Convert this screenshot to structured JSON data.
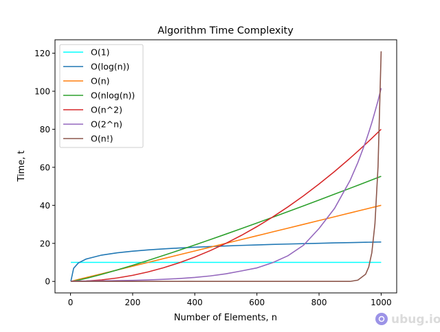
{
  "chart_data": {
    "type": "line",
    "title": "Algorithm Time Complexity",
    "xlabel": "Number of Elements, n",
    "ylabel": "Time, t",
    "xlim": [
      -50,
      1050
    ],
    "ylim": [
      -6.05,
      127.05
    ],
    "xticks": [
      0,
      200,
      400,
      600,
      800,
      1000
    ],
    "yticks": [
      0,
      20,
      40,
      60,
      80,
      100,
      120
    ],
    "grid": false,
    "legend_placement": "top-left",
    "x": [
      1,
      10,
      25,
      50,
      100,
      150,
      200,
      250,
      300,
      350,
      400,
      450,
      500,
      550,
      600,
      650,
      700,
      750,
      800,
      850,
      900,
      925,
      950,
      960,
      970,
      980,
      990,
      1000
    ],
    "series": [
      {
        "name": "O(1)",
        "color": "#00ffff",
        "values": [
          10,
          10,
          10,
          10,
          10,
          10,
          10,
          10,
          10,
          10,
          10,
          10,
          10,
          10,
          10,
          10,
          10,
          10,
          10,
          10,
          10,
          10,
          10,
          10,
          10,
          10,
          10,
          10
        ]
      },
      {
        "name": "O(log(n))",
        "color": "#1f77b4",
        "values": [
          0,
          6.91,
          9.66,
          11.74,
          13.82,
          15.03,
          15.89,
          16.56,
          17.11,
          17.57,
          17.97,
          18.33,
          18.64,
          18.93,
          19.19,
          19.43,
          19.65,
          19.86,
          20.05,
          20.24,
          20.41,
          20.49,
          20.57,
          20.6,
          20.63,
          20.66,
          20.69,
          20.72
        ]
      },
      {
        "name": "O(n)",
        "color": "#ff7f0e",
        "values": [
          0.04,
          0.4,
          1,
          2,
          4,
          6,
          8,
          10,
          12,
          14,
          16,
          18,
          20,
          22,
          24,
          26,
          28,
          30,
          32,
          34,
          36,
          37,
          38,
          38.4,
          38.8,
          39.2,
          39.6,
          40
        ]
      },
      {
        "name": "O(nlog(n))",
        "color": "#2ca02c",
        "values": [
          0,
          0.18,
          0.64,
          1.56,
          3.68,
          6.01,
          8.48,
          11.04,
          13.69,
          16.4,
          19.17,
          21.99,
          24.86,
          27.76,
          30.7,
          33.68,
          36.69,
          39.72,
          42.78,
          45.87,
          48.98,
          50.53,
          52.1,
          52.74,
          53.36,
          54.01,
          54.63,
          55.26
        ]
      },
      {
        "name": "O(n^2)",
        "color": "#d62728",
        "values": [
          0,
          0.008,
          0.05,
          0.2,
          0.8,
          1.8,
          3.2,
          5,
          7.2,
          9.8,
          12.8,
          16.2,
          20,
          24.2,
          28.8,
          33.8,
          39.2,
          45,
          51.2,
          57.8,
          64.8,
          68.45,
          72.2,
          73.73,
          75.27,
          76.83,
          78.41,
          80
        ]
      },
      {
        "name": "O(2^n)",
        "color": "#9467bd",
        "values": [
          0.157,
          0.166,
          0.184,
          0.216,
          0.298,
          0.412,
          0.57,
          0.788,
          1.09,
          1.51,
          2.08,
          2.88,
          3.98,
          5.5,
          7.1,
          9.8,
          13.5,
          19.0,
          27.8,
          38.4,
          53.1,
          62.5,
          73.4,
          78.3,
          83.5,
          89.2,
          95.1,
          101.6
        ]
      },
      {
        "name": "O(n!)",
        "color": "#8c564b",
        "values": [
          0,
          0,
          0,
          0,
          0,
          0,
          0,
          0,
          0,
          0,
          0,
          0,
          0,
          0,
          0,
          0,
          0,
          0,
          0,
          0,
          0,
          0.67,
          3.78,
          7.56,
          15.1,
          30.25,
          60.5,
          121
        ]
      }
    ]
  },
  "watermark": {
    "text": "ubug.io",
    "color": "#7b6fe0"
  }
}
